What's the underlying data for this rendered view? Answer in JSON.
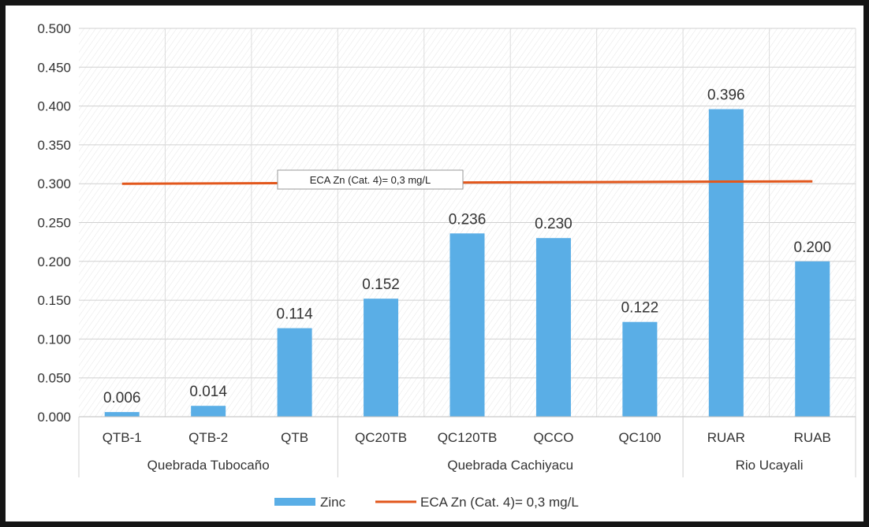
{
  "chart_data": {
    "type": "bar",
    "categories": [
      "QTB-1",
      "QTB-2",
      "QTB",
      "QC20TB",
      "QC120TB",
      "QCCO",
      "QC100",
      "RUAR",
      "RUAB"
    ],
    "groups": [
      {
        "label": "Quebrada Tubocaño",
        "categories": [
          "QTB-1",
          "QTB-2",
          "QTB"
        ]
      },
      {
        "label": "Quebrada Cachiyacu",
        "categories": [
          "QC20TB",
          "QC120TB",
          "QCCO",
          "QC100"
        ]
      },
      {
        "label": "Rio Ucayali",
        "categories": [
          "RUAR",
          "RUAB"
        ]
      }
    ],
    "series": [
      {
        "name": "Zinc",
        "type": "bar",
        "color": "#5aaee6",
        "values": [
          0.006,
          0.014,
          0.114,
          0.152,
          0.236,
          0.23,
          0.122,
          0.396,
          0.2
        ],
        "labels": [
          "0.006",
          "0.014",
          "0.114",
          "0.152",
          "0.236",
          "0.230",
          "0.122",
          "0.396",
          "0.200"
        ]
      },
      {
        "name": "ECA Zn (Cat. 4)= 0,3 mg/L",
        "type": "line",
        "color": "#e2571c",
        "value": 0.3
      }
    ],
    "annotation": "ECA Zn (Cat. 4)= 0,3 mg/L",
    "yticks": [
      "0.000",
      "0.050",
      "0.100",
      "0.150",
      "0.200",
      "0.250",
      "0.300",
      "0.350",
      "0.400",
      "0.450",
      "0.500"
    ],
    "ylim": [
      0,
      0.5
    ],
    "title": "",
    "xlabel": "",
    "ylabel": "",
    "grid": true,
    "legend_position": "bottom"
  }
}
